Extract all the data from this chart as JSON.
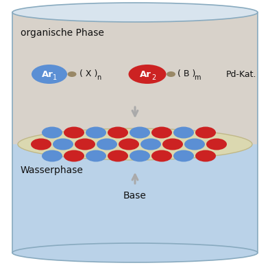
{
  "fig_width": 3.94,
  "fig_height": 3.96,
  "dpi": 100,
  "bg_color": "#ffffff",
  "organic_phase_color": "#d8d2ca",
  "interface_color": "#dbd8b0",
  "water_color": "#bad2e8",
  "blue_ellipse_color": "#5b8fd4",
  "red_ellipse_color": "#cc2222",
  "connector_color": "#998866",
  "arrow_color": "#aaaaaa",
  "text_color": "#111111",
  "cyl_border": "#88aabf",
  "cyl_top_fill": "#d8e4ee",
  "label_organisch": "organische Phase",
  "label_wasser": "Wasserphase",
  "label_base": "Base",
  "label_pdkat": "Pd-Kat."
}
